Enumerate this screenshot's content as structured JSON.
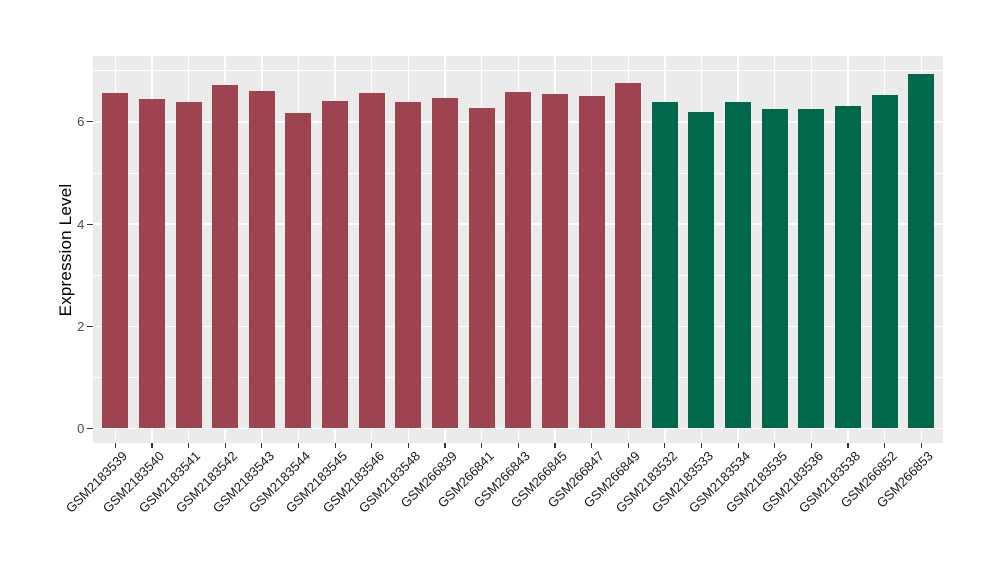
{
  "chart_data": {
    "type": "bar",
    "title": "",
    "xlabel": "",
    "ylabel": "Expression Level",
    "ylim": [
      0,
      7.35
    ],
    "yticks": [
      0,
      2,
      4,
      6
    ],
    "yticks_minor": [
      1,
      3,
      5,
      7
    ],
    "grid": "on",
    "legend": "none",
    "panel_background": "#EBEBEB",
    "gridline_color": "#FFFFFF",
    "axis_text_color": "#4D4D4D",
    "x_axis_text_color": "#1A1A1A",
    "tick_mark_color": "#333333",
    "categories": [
      "GSM2183539",
      "GSM2183540",
      "GSM2183541",
      "GSM2183542",
      "GSM2183543",
      "GSM2183544",
      "GSM2183545",
      "GSM2183546",
      "GSM2183548",
      "GSM266839",
      "GSM266841",
      "GSM266843",
      "GSM266845",
      "GSM266847",
      "GSM266849",
      "GSM2183532",
      "GSM2183533",
      "GSM2183534",
      "GSM2183535",
      "GSM2183536",
      "GSM2183538",
      "GSM266852",
      "GSM266853"
    ],
    "values": [
      6.57,
      6.45,
      6.39,
      6.73,
      6.61,
      6.18,
      6.41,
      6.57,
      6.38,
      6.47,
      6.27,
      6.59,
      6.55,
      6.5,
      6.77,
      6.39,
      6.2,
      6.38,
      6.26,
      6.25,
      6.31,
      6.52,
      6.94
    ],
    "groups": [
      "group1",
      "group1",
      "group1",
      "group1",
      "group1",
      "group1",
      "group1",
      "group1",
      "group1",
      "group1",
      "group1",
      "group1",
      "group1",
      "group1",
      "group1",
      "group2",
      "group2",
      "group2",
      "group2",
      "group2",
      "group2",
      "group2",
      "group2"
    ],
    "group_colors": {
      "group1": "#9E4450",
      "group2": "#00694B"
    }
  }
}
